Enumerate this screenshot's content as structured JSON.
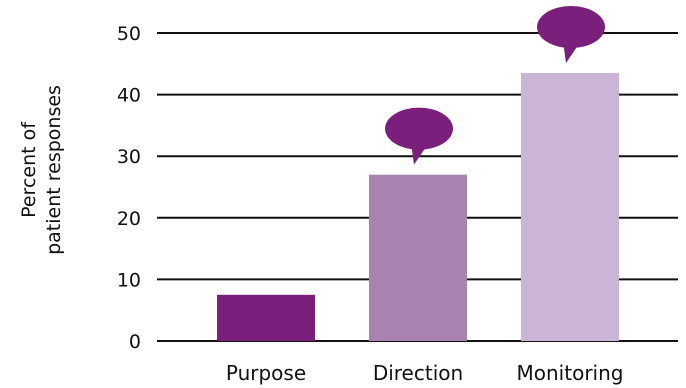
{
  "chart_data": {
    "type": "bar",
    "title": "",
    "xlabel": "",
    "ylabel_lines": [
      "Percent of",
      "patient responses"
    ],
    "categories": [
      "Purpose",
      "Direction",
      "Monitoring"
    ],
    "values": [
      7.5,
      27,
      43.5
    ],
    "bar_colors": [
      "#7b1f7d",
      "#a882b0",
      "#cbb5d6"
    ],
    "bubble_color": "#7b1f7d",
    "speech_bubbles_on": [
      "Direction",
      "Monitoring"
    ],
    "ylim": [
      0,
      50
    ],
    "yticks": [
      0,
      10,
      20,
      30,
      40,
      50
    ],
    "grid": true
  }
}
